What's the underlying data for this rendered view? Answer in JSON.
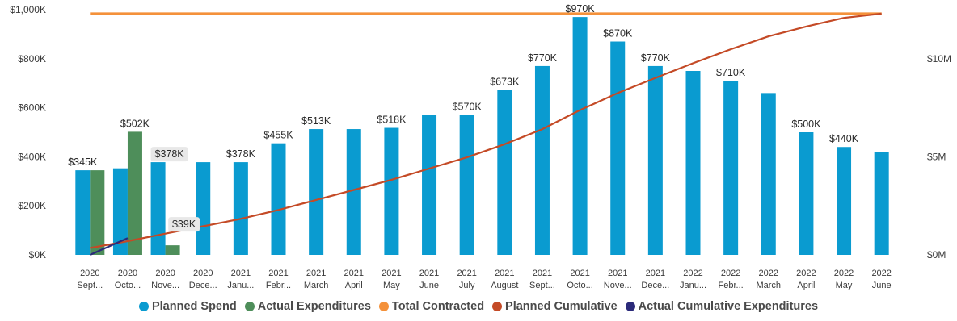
{
  "chart_data": {
    "type": "bar",
    "categories": [
      [
        "2020",
        "Sept..."
      ],
      [
        "2020",
        "Octo..."
      ],
      [
        "2020",
        "Nove..."
      ],
      [
        "2020",
        "Dece..."
      ],
      [
        "2021",
        "Janu..."
      ],
      [
        "2021",
        "Febr..."
      ],
      [
        "2021",
        "March"
      ],
      [
        "2021",
        "April"
      ],
      [
        "2021",
        "May"
      ],
      [
        "2021",
        "June"
      ],
      [
        "2021",
        "July"
      ],
      [
        "2021",
        "August"
      ],
      [
        "2021",
        "Sept..."
      ],
      [
        "2021",
        "Octo..."
      ],
      [
        "2021",
        "Nove..."
      ],
      [
        "2021",
        "Dece..."
      ],
      [
        "2022",
        "Janu..."
      ],
      [
        "2022",
        "Febr..."
      ],
      [
        "2022",
        "March"
      ],
      [
        "2022",
        "April"
      ],
      [
        "2022",
        "May"
      ],
      [
        "2022",
        "June"
      ]
    ],
    "y_left": {
      "ylim": [
        0,
        1000
      ],
      "ticks": [
        0,
        200,
        400,
        600,
        800,
        1000
      ],
      "tick_labels": [
        "$0K",
        "$200K",
        "$400K",
        "$600K",
        "$800K",
        "$1,000K"
      ]
    },
    "y_right": {
      "ylim": [
        0,
        12.5
      ],
      "ticks": [
        0,
        5,
        10
      ],
      "tick_labels": [
        "$0M",
        "$5M",
        "$10M"
      ]
    },
    "series": [
      {
        "name": "Planned Spend",
        "type": "bar",
        "axis": "left",
        "color": "#0a9bd0",
        "values": [
          345,
          353,
          378,
          378,
          378,
          455,
          513,
          513,
          518,
          570,
          570,
          673,
          770,
          970,
          870,
          770,
          750,
          710,
          660,
          500,
          440,
          420
        ]
      },
      {
        "name": "Actual Expenditures",
        "type": "bar",
        "axis": "left",
        "color": "#4e8e5a",
        "values": [
          345,
          502,
          39,
          null,
          null,
          null,
          null,
          null,
          null,
          null,
          null,
          null,
          null,
          null,
          null,
          null,
          null,
          null,
          null,
          null,
          null,
          null
        ]
      },
      {
        "name": "Total Contracted",
        "type": "line",
        "axis": "right",
        "color": "#f4913a",
        "values": [
          12.3,
          12.3,
          12.3,
          12.3,
          12.3,
          12.3,
          12.3,
          12.3,
          12.3,
          12.3,
          12.3,
          12.3,
          12.3,
          12.3,
          12.3,
          12.3,
          12.3,
          12.3,
          12.3,
          12.3,
          12.3,
          12.3
        ]
      },
      {
        "name": "Planned Cumulative",
        "type": "line",
        "axis": "right",
        "color": "#c44a26",
        "values": [
          0.35,
          0.7,
          1.08,
          1.46,
          1.84,
          2.29,
          2.8,
          3.31,
          3.83,
          4.4,
          4.97,
          5.64,
          6.41,
          7.38,
          8.25,
          9.02,
          9.77,
          10.48,
          11.14,
          11.64,
          12.08,
          12.3
        ]
      },
      {
        "name": "Actual Cumulative Expenditures",
        "type": "line",
        "axis": "right",
        "color": "#2b2a7a",
        "values": [
          0.0,
          0.85,
          null,
          null,
          null,
          null,
          null,
          null,
          null,
          null,
          null,
          null,
          null,
          null,
          null,
          null,
          null,
          null,
          null,
          null,
          null,
          null
        ]
      }
    ],
    "data_labels": [
      {
        "series": 0,
        "index": 0,
        "text": "$345K"
      },
      {
        "series": 1,
        "index": 1,
        "text": "$502K"
      },
      {
        "series": 0,
        "index": 2,
        "text": "$378K",
        "boxed": true
      },
      {
        "series": 1,
        "index": 2,
        "text": "$39K",
        "boxed": true
      },
      {
        "series": 0,
        "index": 4,
        "text": "$378K"
      },
      {
        "series": 0,
        "index": 5,
        "text": "$455K"
      },
      {
        "series": 0,
        "index": 6,
        "text": "$513K"
      },
      {
        "series": 0,
        "index": 8,
        "text": "$518K"
      },
      {
        "series": 0,
        "index": 10,
        "text": "$570K"
      },
      {
        "series": 0,
        "index": 11,
        "text": "$673K"
      },
      {
        "series": 0,
        "index": 12,
        "text": "$770K"
      },
      {
        "series": 0,
        "index": 13,
        "text": "$970K"
      },
      {
        "series": 0,
        "index": 14,
        "text": "$870K"
      },
      {
        "series": 0,
        "index": 15,
        "text": "$770K"
      },
      {
        "series": 0,
        "index": 17,
        "text": "$710K"
      },
      {
        "series": 0,
        "index": 19,
        "text": "$500K"
      },
      {
        "series": 0,
        "index": 20,
        "text": "$440K"
      }
    ],
    "legend_position": "bottom",
    "grid": false
  }
}
